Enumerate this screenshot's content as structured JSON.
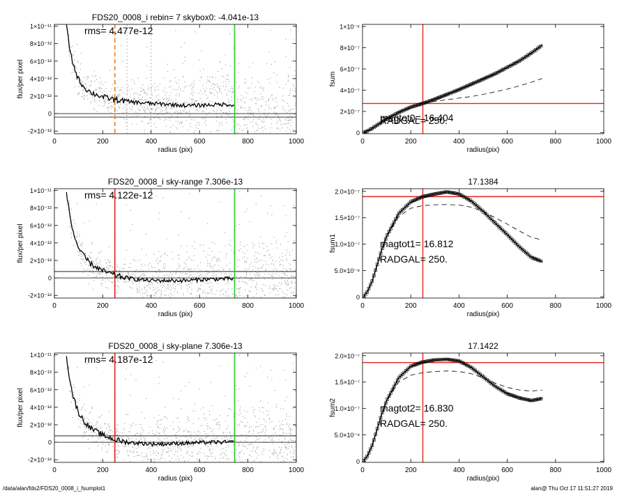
{
  "footer": {
    "path": "/data/alan/fds2/FDS20_0008_i_fsumplot1",
    "stamp": "alan@  Thu Oct 17 11:51:27 2019"
  },
  "colors": {
    "scatter": "#a8a8a8",
    "red": "#e8201a",
    "green": "#28c828",
    "orange": "#e87d1e",
    "curve": "#000000"
  },
  "chart_data": [
    {
      "type": "scatter",
      "title": "FDS20_0008_i rebin= 7    skybox0: -4.041e-13",
      "annotation": "rms= 4.477e-12",
      "xlabel": "radius (pix)",
      "ylabel": "flux/per pixel",
      "xlim": [
        0,
        1000
      ],
      "ylim": [
        -2.3e-12,
        1.02e-11
      ],
      "xticks": [
        0,
        200,
        400,
        600,
        800,
        1000
      ],
      "xticklabels": [
        "0",
        "200",
        "400",
        "600",
        "800",
        "1000"
      ],
      "yticks": [
        -2e-12,
        0,
        2e-12,
        4e-12,
        6e-12,
        8e-12,
        1e-11
      ],
      "yticklabels": [
        "-2×10⁻¹²",
        "0",
        "2×10⁻¹²",
        "4×10⁻¹²",
        "6×10⁻¹²",
        "8×10⁻¹²",
        "1×10⁻¹¹"
      ],
      "hlines": [
        0,
        -4e-13
      ],
      "vlines": [
        {
          "x": 745,
          "color": "green",
          "style": "solid"
        },
        {
          "x": 250,
          "color": "orange",
          "style": "dashed"
        },
        {
          "x": 300,
          "color": "gray",
          "style": "dotted"
        },
        {
          "x": 400,
          "color": "gray",
          "style": "dotted"
        }
      ],
      "profile": {
        "x": [
          50,
          60,
          70,
          80,
          90,
          100,
          120,
          150,
          200,
          250,
          300,
          350,
          400,
          450,
          500,
          550,
          600,
          650,
          700,
          745
        ],
        "y": [
          1e-11,
          8e-12,
          6.5e-12,
          5.5e-12,
          4.6e-12,
          3.9e-12,
          3.1e-12,
          2.4e-12,
          1.9e-12,
          1.6e-12,
          1.4e-12,
          1.25e-12,
          1.15e-12,
          1.1e-12,
          1e-12,
          9e-13,
          9.5e-13,
          1e-12,
          1.05e-12,
          1e-12
        ]
      }
    },
    {
      "type": "line",
      "title": "",
      "xlabel": "radius(pix)",
      "ylabel": "fsum",
      "xlim": [
        0,
        1000
      ],
      "ylim": [
        -1e-08,
        1.02e-06
      ],
      "xticks": [
        0,
        200,
        400,
        600,
        800,
        1000
      ],
      "xticklabels": [
        "0",
        "200",
        "400",
        "600",
        "800",
        "1000"
      ],
      "yticks": [
        0,
        2e-07,
        4e-07,
        6e-07,
        8e-07,
        1e-06
      ],
      "yticklabels": [
        "0",
        "2×10⁻⁷",
        "4×10⁻⁷",
        "6×10⁻⁷",
        "8×10⁻⁷",
        "1×10⁻⁶"
      ],
      "annotations": [
        "magtot0= 16.404",
        "RADGAL=   250."
      ],
      "vlines": [
        {
          "x": 250,
          "color": "red"
        }
      ],
      "hlines": [
        {
          "y": 2.75e-07,
          "color": "red"
        }
      ],
      "series": [
        {
          "x": [
            5,
            20,
            40,
            60,
            80,
            100,
            150,
            200,
            250,
            300,
            350,
            400,
            450,
            500,
            550,
            600,
            650,
            700,
            745
          ],
          "y": [
            2e-09,
            1.5e-08,
            4e-08,
            7e-08,
            1e-07,
            1.3e-07,
            1.9e-07,
            2.4e-07,
            2.75e-07,
            3.15e-07,
            3.6e-07,
            4.05e-07,
            4.55e-07,
            5.05e-07,
            5.55e-07,
            6.15e-07,
            6.75e-07,
            7.5e-07,
            8.25e-07
          ]
        },
        {
          "style": "dashed",
          "x": [
            5,
            20,
            40,
            60,
            80,
            100,
            150,
            200,
            250,
            300,
            350,
            400,
            450,
            500,
            550,
            600,
            650,
            700,
            745
          ],
          "y": [
            2e-09,
            1.5e-08,
            4e-08,
            7e-08,
            1e-07,
            1.3e-07,
            1.9e-07,
            2.4e-07,
            2.75e-07,
            2.95e-07,
            3.1e-07,
            3.25e-07,
            3.4e-07,
            3.6e-07,
            3.85e-07,
            4.1e-07,
            4.4e-07,
            4.75e-07,
            5.1e-07
          ]
        }
      ]
    },
    {
      "type": "scatter",
      "title": "FDS20_0008_i sky-range  7.306e-13",
      "annotation": "rms= 4.122e-12",
      "xlabel": "radius (pix)",
      "ylabel": "flux/per pixel",
      "xlim": [
        0,
        1000
      ],
      "ylim": [
        -2.3e-12,
        1.02e-11
      ],
      "xticks": [
        0,
        200,
        400,
        600,
        800,
        1000
      ],
      "xticklabels": [
        "0",
        "200",
        "400",
        "600",
        "800",
        "1000"
      ],
      "yticks": [
        -2e-12,
        0,
        2e-12,
        4e-12,
        6e-12,
        8e-12,
        1e-11
      ],
      "yticklabels": [
        "-2×10⁻¹²",
        "0",
        "2×10⁻¹²",
        "4×10⁻¹²",
        "6×10⁻¹²",
        "8×10⁻¹²",
        "1×10⁻¹¹"
      ],
      "hlines": [
        0,
        7.306e-13
      ],
      "vlines": [
        {
          "x": 745,
          "color": "green",
          "style": "solid"
        },
        {
          "x": 250,
          "color": "red",
          "style": "solid"
        }
      ],
      "profile": {
        "x": [
          50,
          60,
          70,
          80,
          90,
          100,
          120,
          150,
          200,
          250,
          300,
          350,
          400,
          450,
          500,
          550,
          600,
          650,
          700,
          745
        ],
        "y": [
          1e-11,
          7.8e-12,
          6.2e-12,
          5e-12,
          4.2e-12,
          3.4e-12,
          2.5e-12,
          1.6e-12,
          8e-13,
          3e-13,
          0,
          -2e-13,
          -3e-13,
          -3e-13,
          -3e-13,
          -3e-13,
          -2e-13,
          -1.5e-13,
          -1e-13,
          -1e-13
        ]
      }
    },
    {
      "type": "line",
      "title": "17.1384",
      "xlabel": "radius(pix)",
      "ylabel": "fsum1",
      "xlim": [
        0,
        1000
      ],
      "ylim": [
        -2e-09,
        2.05e-07
      ],
      "xticks": [
        0,
        200,
        400,
        600,
        800,
        1000
      ],
      "xticklabels": [
        "0",
        "200",
        "400",
        "600",
        "800",
        "1000"
      ],
      "yticks": [
        0,
        5e-08,
        1e-07,
        1.5e-07,
        2e-07
      ],
      "yticklabels": [
        "0",
        "5.0×10⁻⁸",
        "1.0×10⁻⁷",
        "1.5×10⁻⁷",
        "2.0×10⁻⁷"
      ],
      "annotations": [
        "magtot1=  16.812",
        "RADGAL=    250."
      ],
      "vlines": [
        {
          "x": 250,
          "color": "red"
        }
      ],
      "hlines": [
        {
          "y": 1.9e-07,
          "color": "red"
        }
      ],
      "series": [
        {
          "x": [
            5,
            20,
            40,
            60,
            80,
            100,
            150,
            200,
            250,
            300,
            350,
            400,
            450,
            500,
            550,
            600,
            650,
            700,
            745
          ],
          "y": [
            1e-09,
            1e-08,
            3e-08,
            6e-08,
            9e-08,
            1.15e-07,
            1.58e-07,
            1.8e-07,
            1.9e-07,
            1.95e-07,
            1.99e-07,
            1.95e-07,
            1.82e-07,
            1.62e-07,
            1.4e-07,
            1.18e-07,
            9.5e-08,
            7.5e-08,
            6.7e-08
          ]
        },
        {
          "style": "dashed",
          "x": [
            5,
            20,
            40,
            60,
            80,
            100,
            150,
            200,
            250,
            300,
            350,
            400,
            450,
            500,
            550,
            600,
            650,
            700,
            745
          ],
          "y": [
            1e-09,
            1e-08,
            3e-08,
            6e-08,
            9e-08,
            1.15e-07,
            1.52e-07,
            1.68e-07,
            1.73e-07,
            1.745e-07,
            1.75e-07,
            1.74e-07,
            1.7e-07,
            1.62e-07,
            1.5e-07,
            1.38e-07,
            1.25e-07,
            1.13e-07,
            1.08e-07
          ]
        }
      ]
    },
    {
      "type": "scatter",
      "title": "FDS20_0008_i sky-plane  7.306e-13",
      "annotation": "rms= 4.187e-12",
      "xlabel": "radius (pix)",
      "ylabel": "flux/per pixel",
      "xlim": [
        0,
        1000
      ],
      "ylim": [
        -2.3e-12,
        1.02e-11
      ],
      "xticks": [
        0,
        200,
        400,
        600,
        800,
        1000
      ],
      "xticklabels": [
        "0",
        "200",
        "400",
        "600",
        "800",
        "1000"
      ],
      "yticks": [
        -2e-12,
        0,
        2e-12,
        4e-12,
        6e-12,
        8e-12,
        1e-11
      ],
      "yticklabels": [
        "-2×10⁻¹²",
        "0",
        "2×10⁻¹²",
        "4×10⁻¹²",
        "6×10⁻¹²",
        "8×10⁻¹²",
        "1×10⁻¹¹"
      ],
      "hlines": [
        0,
        7.306e-13
      ],
      "vlines": [
        {
          "x": 745,
          "color": "green",
          "style": "solid"
        },
        {
          "x": 250,
          "color": "red",
          "style": "solid"
        }
      ],
      "profile": {
        "x": [
          50,
          60,
          70,
          80,
          90,
          100,
          120,
          150,
          200,
          250,
          300,
          350,
          400,
          450,
          500,
          550,
          600,
          650,
          700,
          745
        ],
        "y": [
          1e-11,
          7.8e-12,
          6.2e-12,
          5e-12,
          4.2e-12,
          3.4e-12,
          2.5e-12,
          1.6e-12,
          8e-13,
          3e-13,
          0,
          -1e-13,
          -2e-13,
          -2e-13,
          -1.5e-13,
          -1e-13,
          -5e-14,
          0,
          0,
          0
        ]
      }
    },
    {
      "type": "line",
      "title": "17.1422",
      "xlabel": "radius(pix)",
      "ylabel": "fsum2",
      "xlim": [
        0,
        1000
      ],
      "ylim": [
        -2e-09,
        2.05e-07
      ],
      "xticks": [
        0,
        200,
        400,
        600,
        800,
        1000
      ],
      "xticklabels": [
        "0",
        "200",
        "400",
        "600",
        "800",
        "1000"
      ],
      "yticks": [
        0,
        5e-08,
        1e-07,
        1.5e-07,
        2e-07
      ],
      "yticklabels": [
        "0",
        "5.0×10⁻⁸",
        "1.0×10⁻⁷",
        "1.5×10⁻⁷",
        "2.0×10⁻⁷"
      ],
      "annotations": [
        "magtot2=  16.830",
        "RADGAL=    250."
      ],
      "vlines": [
        {
          "x": 250,
          "color": "red"
        }
      ],
      "hlines": [
        {
          "y": 1.87e-07,
          "color": "red"
        }
      ],
      "series": [
        {
          "x": [
            5,
            20,
            40,
            60,
            80,
            100,
            150,
            200,
            250,
            300,
            350,
            400,
            450,
            500,
            550,
            600,
            650,
            700,
            745
          ],
          "y": [
            1e-09,
            1e-08,
            3e-08,
            6e-08,
            9e-08,
            1.15e-07,
            1.58e-07,
            1.8e-07,
            1.88e-07,
            1.92e-07,
            1.93e-07,
            1.9e-07,
            1.78e-07,
            1.6e-07,
            1.42e-07,
            1.28e-07,
            1.2e-07,
            1.15e-07,
            1.19e-07
          ]
        },
        {
          "style": "dashed",
          "x": [
            5,
            20,
            40,
            60,
            80,
            100,
            150,
            200,
            250,
            300,
            350,
            400,
            450,
            500,
            550,
            600,
            650,
            700,
            745
          ],
          "y": [
            1e-09,
            1e-08,
            3e-08,
            6e-08,
            9e-08,
            1.15e-07,
            1.5e-07,
            1.63e-07,
            1.68e-07,
            1.7e-07,
            1.71e-07,
            1.7e-07,
            1.66e-07,
            1.58e-07,
            1.48e-07,
            1.4e-07,
            1.35e-07,
            1.33e-07,
            1.35e-07
          ]
        }
      ]
    }
  ]
}
